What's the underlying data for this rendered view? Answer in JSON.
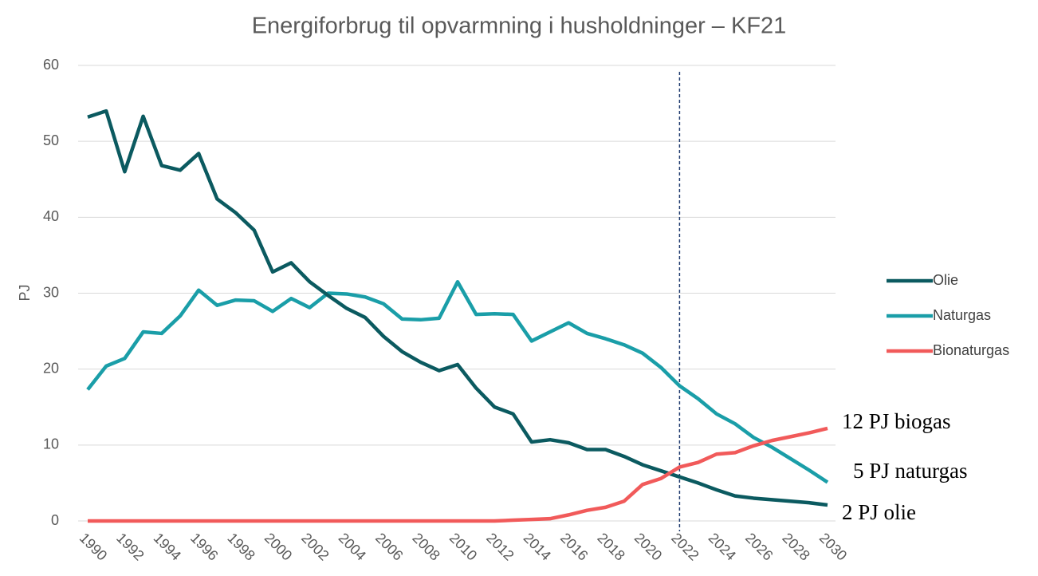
{
  "chart_data": {
    "type": "line",
    "title": "Energiforbrug til opvarmning i husholdninger – KF21",
    "y_label": "PJ",
    "x": [
      1990,
      1991,
      1992,
      1993,
      1994,
      1995,
      1996,
      1997,
      1998,
      1999,
      2000,
      2001,
      2002,
      2003,
      2004,
      2005,
      2006,
      2007,
      2008,
      2009,
      2010,
      2011,
      2012,
      2013,
      2014,
      2015,
      2016,
      2017,
      2018,
      2019,
      2020,
      2021,
      2022,
      2023,
      2024,
      2025,
      2026,
      2027,
      2028,
      2029,
      2030
    ],
    "series": [
      {
        "name": "Olie",
        "color": "#0b5a60",
        "values": [
          53.2,
          54,
          46,
          53.3,
          46.8,
          46.2,
          48.4,
          42.4,
          40.6,
          38.3,
          32.8,
          34,
          31.5,
          29.7,
          28,
          26.8,
          24.3,
          22.3,
          20.9,
          19.8,
          20.6,
          17.5,
          15,
          14.1,
          10.4,
          10.7,
          10.3,
          9.4,
          9.4,
          8.5,
          7.4,
          6.6,
          5.8,
          5,
          4.1,
          3.3,
          3.0,
          2.8,
          2.6,
          2.4,
          2.1
        ]
      },
      {
        "name": "Naturgas",
        "color": "#1a9ea8",
        "values": [
          17.3,
          20.4,
          21.4,
          24.9,
          24.7,
          27,
          30.4,
          28.4,
          29.1,
          29,
          27.6,
          29.3,
          28.1,
          30,
          29.9,
          29.5,
          28.6,
          26.6,
          26.5,
          26.7,
          31.5,
          27.2,
          27.3,
          27.2,
          23.7,
          24.9,
          26.1,
          24.7,
          24,
          23.2,
          22.1,
          20.2,
          17.8,
          16.1,
          14.1,
          12.8,
          11,
          9.7,
          8.2,
          6.7,
          5.1
        ]
      },
      {
        "name": "Bionaturgas",
        "color": "#f15a5a",
        "values": [
          0,
          0,
          0,
          0,
          0,
          0,
          0,
          0,
          0,
          0,
          0,
          0,
          0,
          0,
          0,
          0,
          0,
          0,
          0,
          0,
          0,
          0,
          0,
          0.1,
          0.2,
          0.3,
          0.8,
          1.4,
          1.8,
          2.6,
          4.8,
          5.6,
          7.1,
          7.7,
          8.8,
          9,
          9.9,
          10.6,
          11.1,
          11.6,
          12.2
        ]
      }
    ],
    "xlim": [
      1990,
      2030
    ],
    "xticks": [
      1990,
      1992,
      1994,
      1996,
      1998,
      2000,
      2002,
      2004,
      2006,
      2008,
      2010,
      2012,
      2014,
      2016,
      2018,
      2020,
      2022,
      2024,
      2026,
      2028,
      2030
    ],
    "ylim": [
      0,
      60
    ],
    "yticks": [
      0,
      10,
      20,
      30,
      40,
      50,
      60
    ],
    "grid": true,
    "vline": 2022,
    "annotations": [
      "12 PJ biogas",
      "5 PJ naturgas",
      "2 PJ olie"
    ],
    "legend": "right"
  }
}
